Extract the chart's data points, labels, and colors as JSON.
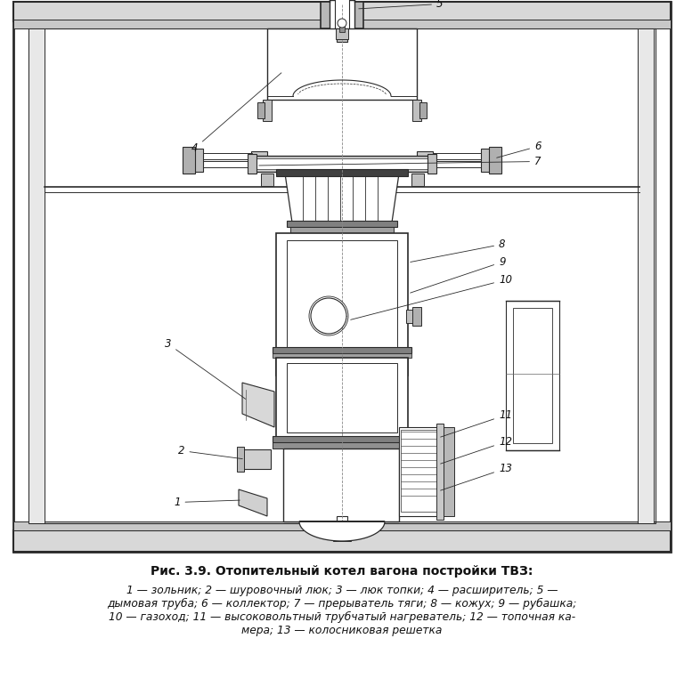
{
  "title": "Рис. 3.9. Отопительный котел вагона постройки ТВЗ:",
  "caption_line1": "1 — зольник; 2 — шуровочный люк; 3 — люк топки; 4 — расширитель; 5 —",
  "caption_line2": "дымовая труба; 6 — коллектор; 7 — прерыватель тяги; 8 — кожух; 9 — рубашка;",
  "caption_line3": "10 — газоход; 11 — высоковольтный трубчатый нагреватель; 12 — топочная ка-",
  "caption_line4": "мера; 13 — колосниковая решетка",
  "bg_color": "#ffffff",
  "lc": "#2a2a2a",
  "fig_width": 7.68,
  "fig_height": 7.81
}
